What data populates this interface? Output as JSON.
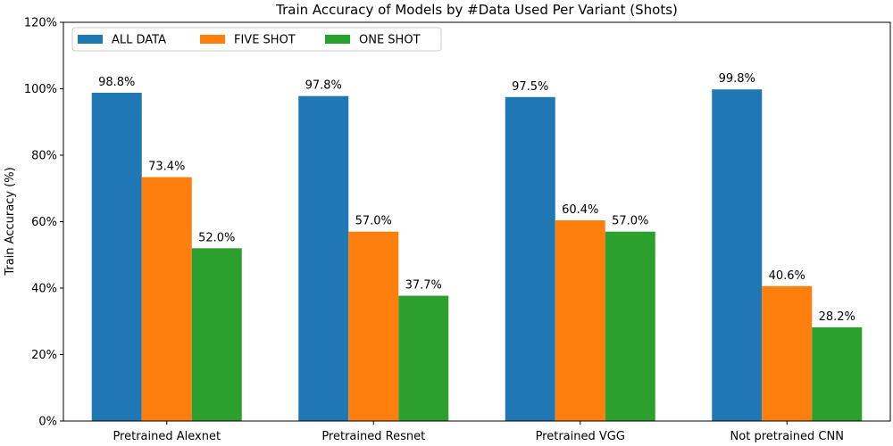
{
  "chart_data": {
    "type": "bar",
    "title": "Train Accuracy of Models by #Data Used Per Variant (Shots)",
    "xlabel": "",
    "ylabel": "Train Accuracy (%)",
    "ylim": [
      0,
      120
    ],
    "yticks": [
      0,
      20,
      40,
      60,
      80,
      100,
      120
    ],
    "ytick_suffix": "%",
    "grid": false,
    "legend_position": "top-left",
    "categories": [
      "Pretrained Alexnet",
      "Pretrained Resnet",
      "Pretrained VGG",
      "Not pretrained CNN"
    ],
    "series": [
      {
        "name": "ALL DATA",
        "color": "#1f77b4",
        "values": [
          98.8,
          97.8,
          97.5,
          99.8
        ],
        "labels": [
          "98.8%",
          "97.8%",
          "97.5%",
          "99.8%"
        ]
      },
      {
        "name": "FIVE SHOT",
        "color": "#ff7f0e",
        "values": [
          73.4,
          57.0,
          60.4,
          40.6
        ],
        "labels": [
          "73.4%",
          "57.0%",
          "60.4%",
          "40.6%"
        ]
      },
      {
        "name": "ONE SHOT",
        "color": "#2ca02c",
        "values": [
          52.0,
          37.7,
          57.0,
          28.2
        ],
        "labels": [
          "52.0%",
          "37.7%",
          "57.0%",
          "28.2%"
        ]
      }
    ]
  }
}
